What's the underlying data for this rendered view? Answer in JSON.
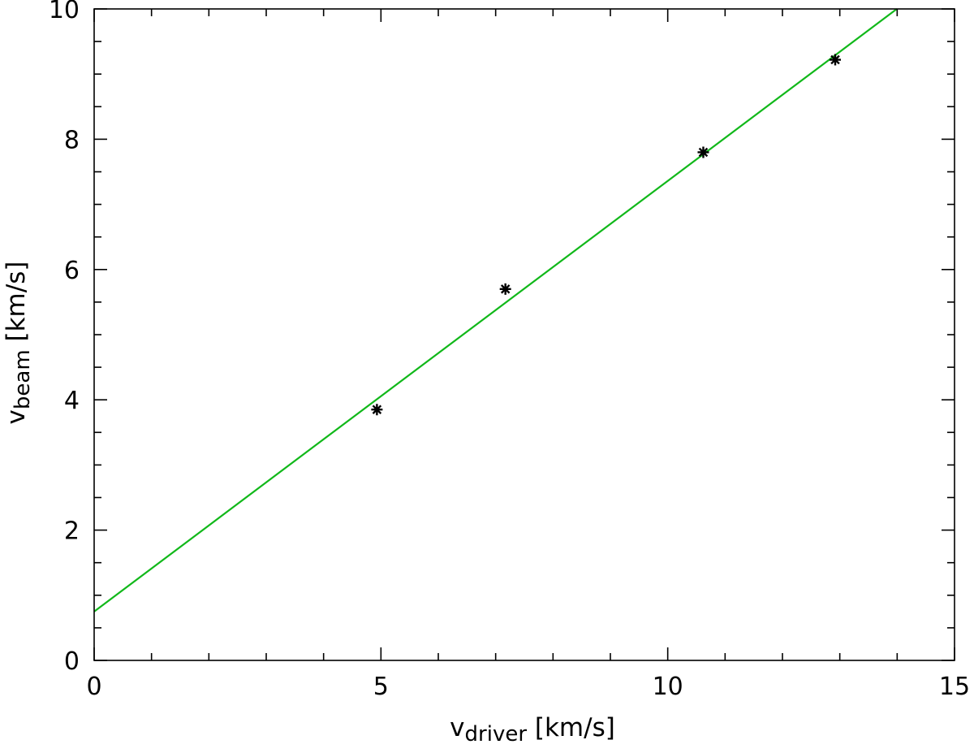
{
  "chart_data": {
    "type": "scatter",
    "title": "",
    "xlabel": {
      "main": "v",
      "sub": "driver",
      "units": " [km/s]"
    },
    "ylabel": {
      "main": "v",
      "sub": "beam",
      "units": " [km/s]"
    },
    "xlim": [
      0,
      15
    ],
    "ylim": [
      0,
      10
    ],
    "x_ticks": [
      0,
      5,
      10,
      15
    ],
    "y_ticks": [
      0,
      2,
      4,
      6,
      8,
      10
    ],
    "x_minor_step": 1,
    "y_minor_step": 0.5,
    "grid": false,
    "legend": "none",
    "series": [
      {
        "kind": "points",
        "marker": "asterisk",
        "color": "#000000",
        "x": [
          4.93,
          7.17,
          10.62,
          12.92
        ],
        "y": [
          3.85,
          5.7,
          7.8,
          9.22
        ]
      },
      {
        "kind": "fit-line",
        "color": "#11b81a",
        "intercept": 0.75,
        "slope": 0.661
      }
    ]
  }
}
